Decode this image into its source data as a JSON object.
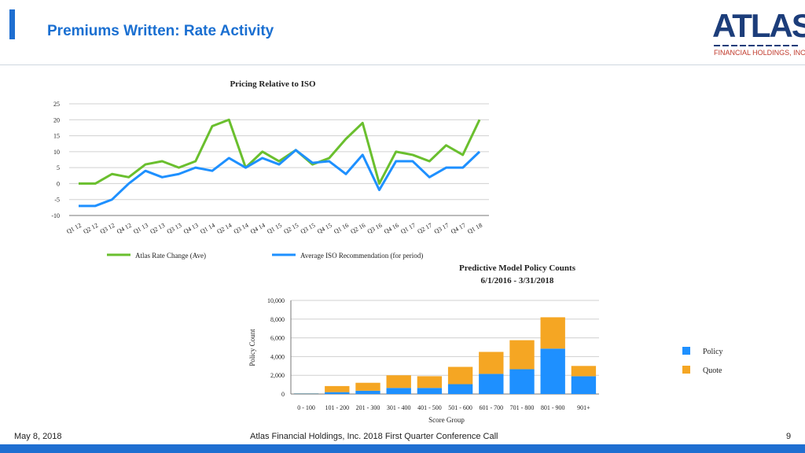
{
  "slide": {
    "title": "Premiums Written: Rate Activity",
    "logo_word": "ATLAS",
    "logo_subtitle": "FINANCIAL HOLDINGS, INC.",
    "footer_date": "May 8, 2018",
    "footer_center": "Atlas Financial Holdings, Inc. 2018 First Quarter Conference Call",
    "page_number": "9",
    "accent_color": "#1f6fd1"
  },
  "chart_data": [
    {
      "type": "line",
      "title": "Pricing Relative to ISO",
      "categories": [
        "Q1 12",
        "Q2 12",
        "Q3 12",
        "Q4 12",
        "Q1 13",
        "Q2 13",
        "Q3 13",
        "Q4 13",
        "Q1 14",
        "Q2 14",
        "Q3 14",
        "Q4 14",
        "Q1 15",
        "Q2 15",
        "Q3 15",
        "Q4 15",
        "Q1 16",
        "Q2 16",
        "Q3 16",
        "Q4 16",
        "Q1 17",
        "Q2 17",
        "Q3 17",
        "Q4 17",
        "Q1 18"
      ],
      "series": [
        {
          "name": "Atlas Rate Change (Ave)",
          "color": "#6abf2e",
          "values": [
            0,
            0,
            3,
            2,
            6,
            7,
            5,
            7,
            18,
            20,
            5,
            10,
            7,
            10.5,
            6,
            8,
            14,
            19,
            0,
            10,
            9,
            7,
            12,
            9,
            20
          ]
        },
        {
          "name": "Average ISO Recommendation (for period)",
          "color": "#1e90ff",
          "values": [
            -7,
            -7,
            -5,
            0,
            4,
            2,
            3,
            5,
            4,
            8,
            5,
            8,
            6,
            10.5,
            6.5,
            7,
            3,
            9,
            -2,
            7,
            7,
            2,
            5,
            5,
            10
          ]
        }
      ],
      "ylim": [
        -10,
        25
      ],
      "yticks": [
        -10,
        -5,
        0,
        5,
        10,
        15,
        20,
        25
      ],
      "grid": true,
      "legend": "bottom"
    },
    {
      "type": "bar",
      "stacked": true,
      "title": "Predictive Model Policy Counts",
      "subtitle": "6/1/2016 - 3/31/2018",
      "xlabel": "Score Group",
      "ylabel": "Policy Count",
      "categories": [
        "0 - 100",
        "101 - 200",
        "201 - 300",
        "301 - 400",
        "401 - 500",
        "501 - 600",
        "601 - 700",
        "701 - 800",
        "801 - 900",
        "901+"
      ],
      "series": [
        {
          "name": "Policy",
          "color": "#1e90ff",
          "values": [
            50,
            200,
            350,
            650,
            650,
            1050,
            2150,
            2650,
            4850,
            1900
          ]
        },
        {
          "name": "Quote",
          "color": "#f5a623",
          "values": [
            30,
            650,
            850,
            1350,
            1250,
            1850,
            2350,
            3100,
            3350,
            1100
          ]
        }
      ],
      "ylim": [
        0,
        10000
      ],
      "ytick_labels": [
        "0",
        "2,000",
        "4,000",
        "6,000",
        "8,000",
        "10,000"
      ],
      "yticks": [
        0,
        2000,
        4000,
        6000,
        8000,
        10000
      ],
      "grid": true,
      "legend": "right"
    }
  ]
}
